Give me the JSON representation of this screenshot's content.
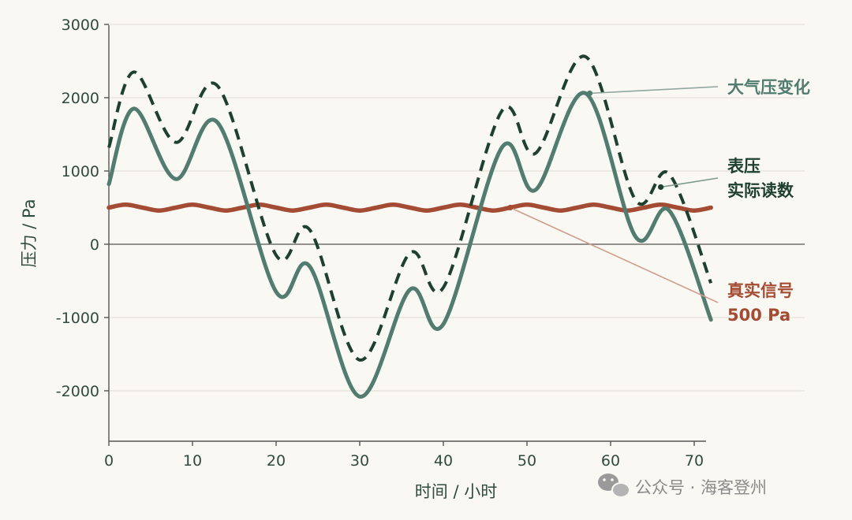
{
  "chart_data": {
    "type": "line",
    "xlabel": "时间 / 小时",
    "ylabel": "压力 / Pa",
    "xlim": [
      0,
      72
    ],
    "ylim": [
      -2700,
      3000
    ],
    "x_ticks": [
      0,
      10,
      20,
      30,
      40,
      50,
      60,
      70
    ],
    "y_ticks": [
      -2000,
      -1000,
      0,
      1000,
      2000,
      3000
    ],
    "grid": "horizontal",
    "series": [
      {
        "name": "大气压变化",
        "color": "#527c70",
        "style": "solid",
        "x": [
          0,
          3,
          8,
          13,
          20,
          24,
          30,
          36,
          40,
          47,
          51,
          57,
          63,
          67,
          72
        ],
        "y": [
          820,
          1850,
          890,
          1660,
          -650,
          -300,
          -2080,
          -620,
          -1090,
          1320,
          740,
          2060,
          100,
          460,
          -1030
        ]
      },
      {
        "name": "表压实际读数",
        "color": "#1e4030",
        "style": "dashed",
        "x": [
          0,
          3,
          8,
          13,
          20,
          24,
          30,
          36,
          40,
          47,
          51,
          57,
          63,
          67,
          72
        ],
        "y": [
          1320,
          2350,
          1390,
          2160,
          -150,
          200,
          -1580,
          -120,
          -590,
          1820,
          1240,
          2560,
          600,
          960,
          -530
        ]
      },
      {
        "name": "真实信号",
        "color": "#a34b33",
        "style": "solid",
        "x": [
          0,
          2,
          4,
          6,
          8,
          10,
          12,
          14,
          16,
          18,
          20,
          22,
          24,
          26,
          28,
          30,
          32,
          34,
          36,
          38,
          40,
          42,
          44,
          46,
          48,
          50,
          52,
          54,
          56,
          58,
          60,
          62,
          64,
          66,
          68,
          70,
          72
        ],
        "y": [
          500,
          540,
          500,
          460,
          500,
          540,
          500,
          460,
          500,
          540,
          500,
          460,
          500,
          540,
          500,
          460,
          500,
          540,
          500,
          460,
          500,
          540,
          500,
          460,
          500,
          540,
          500,
          460,
          500,
          540,
          500,
          460,
          500,
          540,
          500,
          460,
          500
        ]
      }
    ],
    "annotations": [
      {
        "lines": [
          "大气压变化"
        ],
        "color": "#527c70",
        "target_x": 57.5,
        "target_y": 2060
      },
      {
        "lines": [
          "表压",
          "实际读数"
        ],
        "color": "#1e4030",
        "target_x": 66,
        "target_y": 780
      },
      {
        "lines": [
          "真实信号",
          "500 Pa"
        ],
        "color": "#a34b33",
        "target_x": 48,
        "target_y": 500
      }
    ]
  },
  "watermark": {
    "text": "公众号 · 海客登州",
    "icon": "wechat-icon"
  }
}
